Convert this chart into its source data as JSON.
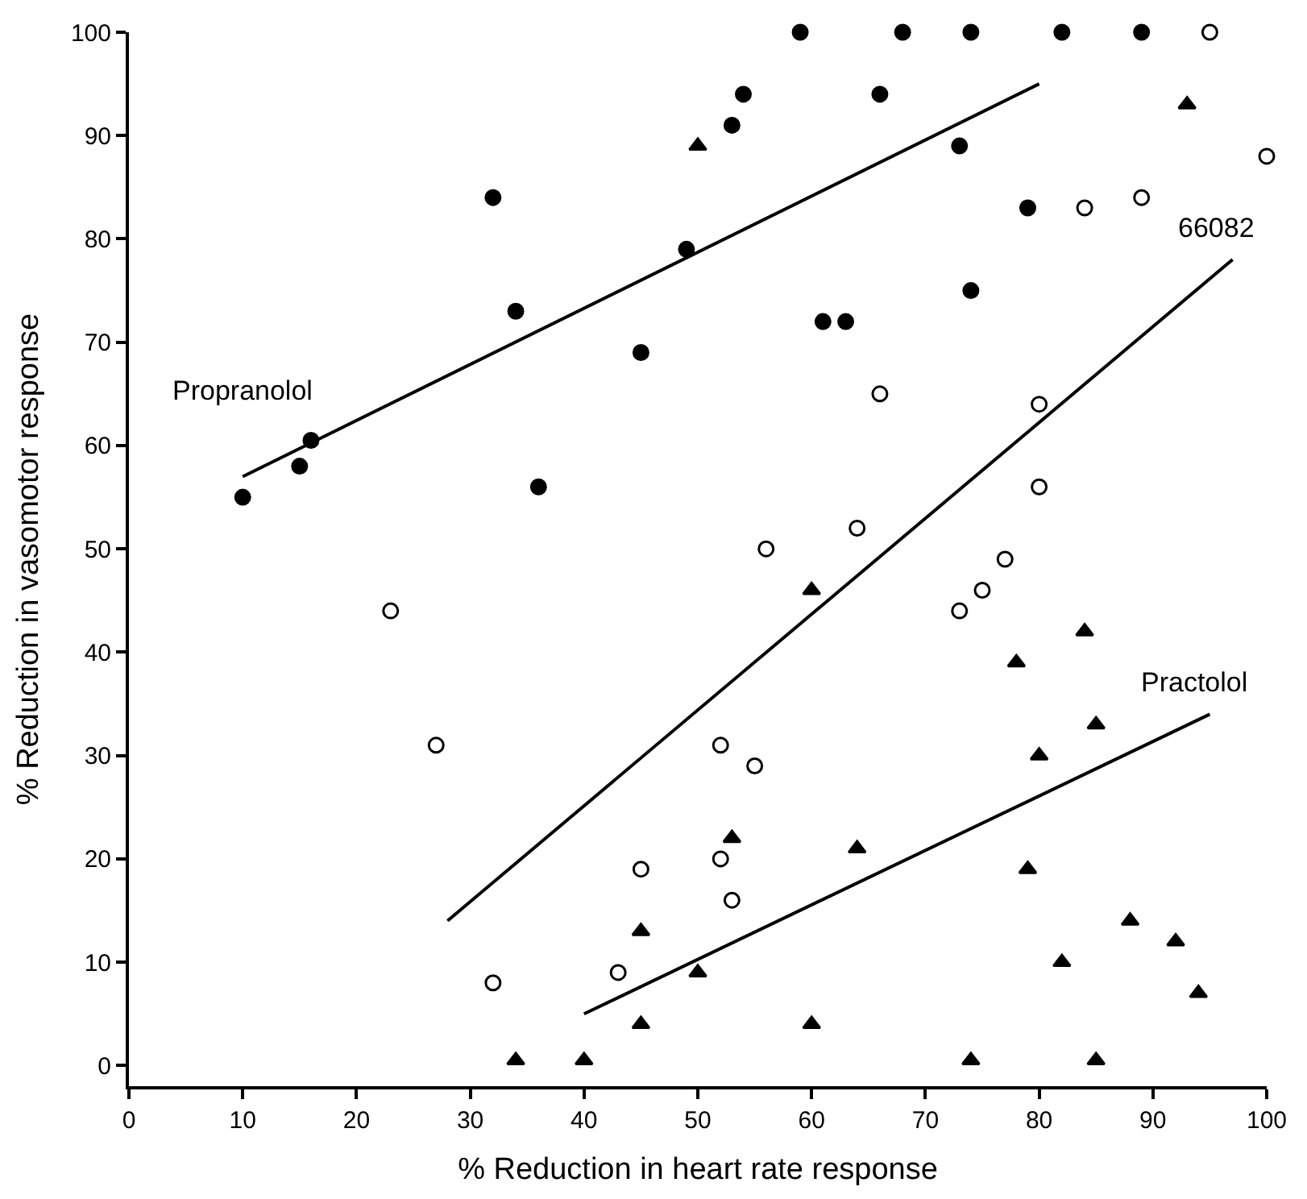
{
  "chart_data": {
    "type": "scatter",
    "xlabel": "% Reduction in heart rate response",
    "ylabel": "% Reduction in vasomotor response",
    "xlim": [
      0,
      100
    ],
    "ylim": [
      -2,
      100
    ],
    "xticks": [
      0,
      10,
      20,
      30,
      40,
      50,
      60,
      70,
      80,
      90,
      100
    ],
    "yticks": [
      0,
      10,
      20,
      30,
      40,
      50,
      60,
      70,
      80,
      90,
      100
    ],
    "grid": false,
    "legend": false,
    "series": [
      {
        "marker": "circle",
        "color": "#000000",
        "x": [
          10,
          15,
          16,
          32,
          34,
          36,
          45,
          49,
          53,
          54,
          59,
          61,
          63,
          66,
          68,
          73,
          74,
          74,
          79,
          82,
          89
        ],
        "values": [
          55,
          58,
          60.5,
          84,
          73,
          56,
          69,
          79,
          91,
          94,
          100,
          72,
          72,
          94,
          100,
          89,
          100,
          75,
          83,
          100,
          100
        ]
      },
      {
        "marker": "circle",
        "color": "#ffffff",
        "x": [
          23,
          27,
          32,
          43,
          45,
          52,
          52,
          53,
          55,
          56,
          64,
          66,
          73,
          75,
          77,
          80,
          80,
          84,
          89,
          95,
          100
        ],
        "values": [
          44,
          31,
          8,
          9,
          19,
          31,
          20,
          16,
          29,
          50,
          52,
          65,
          44,
          46,
          49,
          64,
          56,
          83,
          84,
          100,
          88
        ]
      },
      {
        "marker": "triangle",
        "color": "#000000",
        "x": [
          34,
          40,
          45,
          45,
          50,
          50,
          53,
          60,
          60,
          64,
          74,
          78,
          79,
          80,
          82,
          84,
          85,
          85,
          88,
          92,
          93,
          94
        ],
        "values": [
          0.5,
          0.5,
          4,
          13,
          9,
          89,
          22,
          46,
          4,
          21,
          0.5,
          39,
          19,
          30,
          10,
          42,
          33,
          0.5,
          14,
          12,
          93,
          7
        ]
      },
      {
        "type": "line",
        "name": "Propranolol",
        "marker": "none",
        "color": "#000000",
        "x": [
          10,
          80
        ],
        "values": [
          57,
          95
        ]
      },
      {
        "type": "line",
        "name": "66082",
        "marker": "none",
        "color": "#000000",
        "x": [
          28,
          97
        ],
        "values": [
          14,
          78
        ]
      },
      {
        "type": "line",
        "name": "Practolol",
        "marker": "none",
        "color": "#000000",
        "x": [
          40,
          95
        ],
        "values": [
          5,
          34
        ]
      }
    ]
  }
}
